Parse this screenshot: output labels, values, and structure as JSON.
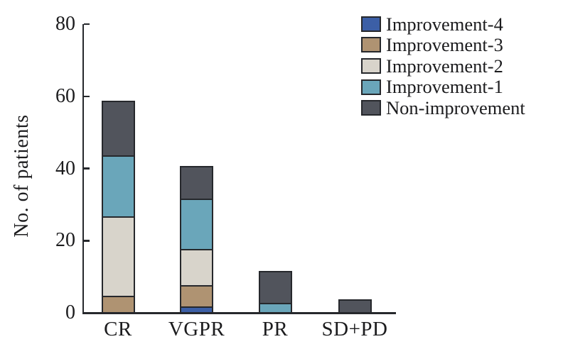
{
  "chart_data": {
    "type": "bar",
    "stacked": true,
    "title": "",
    "xlabel": "",
    "ylabel": "No. of patients",
    "ylim": [
      0,
      80
    ],
    "yticks": [
      0,
      20,
      40,
      60,
      80
    ],
    "grid": false,
    "legend_position": "top-right",
    "categories": [
      "CR",
      "VGPR",
      "PR",
      "SD+PD"
    ],
    "series": [
      {
        "name": "Improvement-4",
        "color": "#3c5fa6",
        "values": [
          0,
          1.5,
          0,
          0
        ]
      },
      {
        "name": "Improvement-3",
        "color": "#af9372",
        "values": [
          4.5,
          6,
          0,
          0
        ]
      },
      {
        "name": "Improvement-2",
        "color": "#d8d4cb",
        "values": [
          22,
          10,
          0,
          0
        ]
      },
      {
        "name": "Improvement-1",
        "color": "#6aa6ba",
        "values": [
          17,
          14,
          2.5,
          0
        ]
      },
      {
        "name": "Non-improvement",
        "color": "#51545c",
        "values": [
          15,
          9,
          9,
          3.5
        ]
      }
    ],
    "bar_totals": [
      58.5,
      40.5,
      11.5,
      3.5
    ],
    "bar_outline_color": "#26282c",
    "axis_color": "#26282c",
    "text_color": "#1c1c1e"
  }
}
